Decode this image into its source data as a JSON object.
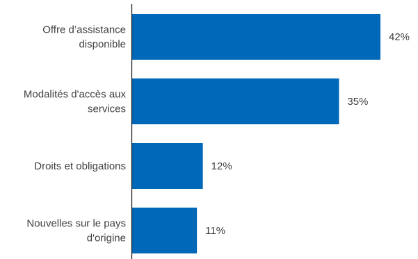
{
  "chart_data": {
    "type": "bar",
    "orientation": "horizontal",
    "title": "",
    "xlabel": "",
    "ylabel": "",
    "categories": [
      [
        "Offre d’assistance",
        "disponible"
      ],
      [
        "Modalités d'accès aux",
        "services"
      ],
      [
        "Droits et obligations"
      ],
      [
        "Nouvelles sur le pays",
        "d'origine"
      ]
    ],
    "values": [
      42,
      35,
      12,
      11
    ],
    "value_labels": [
      "42%",
      "35%",
      "12%",
      "11%"
    ],
    "unit": "%",
    "xlim": [
      0,
      42
    ],
    "grid": false,
    "legend": "none",
    "bar_color": "#0068b8",
    "axis_color": "#1a1a1a",
    "text_color": "#404040"
  }
}
